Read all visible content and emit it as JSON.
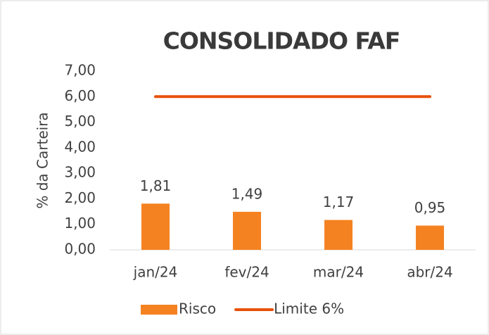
{
  "chart_data": {
    "type": "bar",
    "title": "CONSOLIDADO FAF",
    "y_label": "% da Carteira",
    "categories": [
      "jan/24",
      "fev/24",
      "mar/24",
      "abr/24"
    ],
    "series": [
      {
        "name": "Risco",
        "type": "bar",
        "color": "#f58220",
        "values": [
          1.81,
          1.49,
          1.17,
          0.95
        ],
        "value_labels": [
          "1,81",
          "1,49",
          "1,17",
          "0,95"
        ]
      },
      {
        "name": "Limite 6%",
        "type": "line",
        "color": "#e8500a",
        "values": [
          6,
          6,
          6,
          6
        ]
      }
    ],
    "ylim": [
      0,
      7
    ],
    "yticks": [
      {
        "value": 0,
        "label": "0,00"
      },
      {
        "value": 1,
        "label": "1,00"
      },
      {
        "value": 2,
        "label": "2,00"
      },
      {
        "value": 3,
        "label": "3,00"
      },
      {
        "value": 4,
        "label": "4,00"
      },
      {
        "value": 5,
        "label": "5,00"
      },
      {
        "value": 6,
        "label": "6,00"
      },
      {
        "value": 7,
        "label": "7,00"
      }
    ],
    "grid": false,
    "legend": "bottom"
  }
}
